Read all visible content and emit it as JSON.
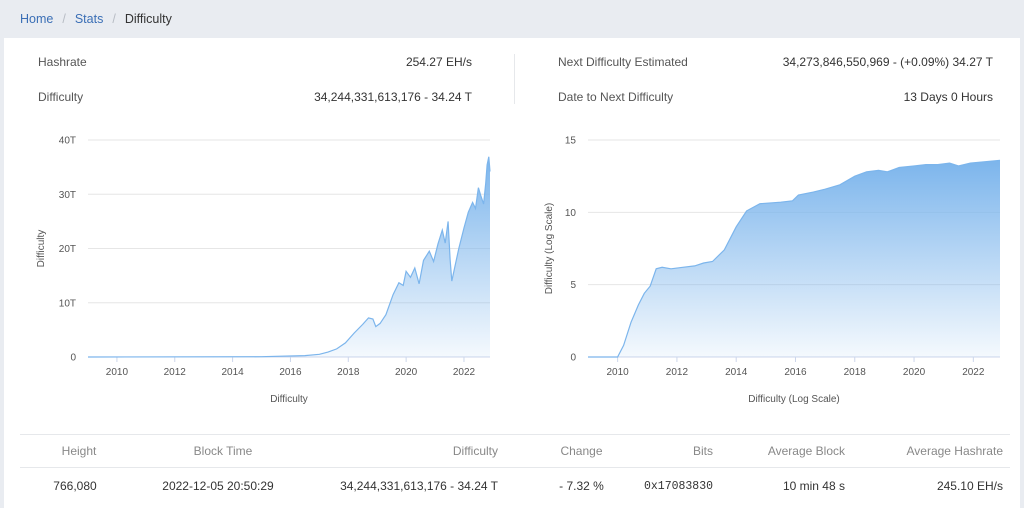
{
  "breadcrumb": {
    "home": "Home",
    "stats": "Stats",
    "current": "Difficulty"
  },
  "stats": {
    "hashrate_label": "Hashrate",
    "hashrate_value": "254.27 EH/s",
    "difficulty_label": "Difficulty",
    "difficulty_value": "34,244,331,613,176 - 34.24 T",
    "next_label": "Next Difficulty Estimated",
    "next_value": "34,273,846,550,969 - (+0.09%) 34.27 T",
    "date_label": "Date to Next Difficulty",
    "date_value": "13 Days 0 Hours"
  },
  "chart_data": [
    {
      "type": "area",
      "title": "",
      "xlabel": "Difficulty",
      "ylabel": "Difficulty",
      "x_ticks": [
        "2010",
        "2012",
        "2014",
        "2016",
        "2018",
        "2020",
        "2022"
      ],
      "y_ticks": [
        "0",
        "10T",
        "20T",
        "30T",
        "40T"
      ],
      "xlim": [
        2009.0,
        2022.9
      ],
      "ylim": [
        0,
        40
      ],
      "y_unit": "T",
      "grid": true,
      "color": "#7cb5ec",
      "points": [
        [
          2009.0,
          0
        ],
        [
          2015.0,
          0.05
        ],
        [
          2016.5,
          0.25
        ],
        [
          2017.0,
          0.5
        ],
        [
          2017.3,
          0.9
        ],
        [
          2017.6,
          1.5
        ],
        [
          2017.9,
          2.6
        ],
        [
          2018.2,
          4.4
        ],
        [
          2018.5,
          6.0
        ],
        [
          2018.7,
          7.2
        ],
        [
          2018.85,
          7.0
        ],
        [
          2018.95,
          5.6
        ],
        [
          2019.1,
          6.2
        ],
        [
          2019.3,
          7.8
        ],
        [
          2019.55,
          11.5
        ],
        [
          2019.75,
          13.7
        ],
        [
          2019.9,
          13.2
        ],
        [
          2020.0,
          15.8
        ],
        [
          2020.15,
          14.7
        ],
        [
          2020.3,
          16.4
        ],
        [
          2020.45,
          13.5
        ],
        [
          2020.6,
          17.8
        ],
        [
          2020.8,
          19.5
        ],
        [
          2020.95,
          17.6
        ],
        [
          2021.1,
          20.8
        ],
        [
          2021.25,
          23.4
        ],
        [
          2021.35,
          21.0
        ],
        [
          2021.45,
          25.0
        ],
        [
          2021.52,
          18.0
        ],
        [
          2021.58,
          14.0
        ],
        [
          2021.68,
          16.5
        ],
        [
          2021.82,
          20.0
        ],
        [
          2022.0,
          23.8
        ],
        [
          2022.15,
          26.7
        ],
        [
          2022.3,
          28.5
        ],
        [
          2022.4,
          27.4
        ],
        [
          2022.5,
          31.2
        ],
        [
          2022.58,
          29.8
        ],
        [
          2022.68,
          28.2
        ],
        [
          2022.75,
          32.0
        ],
        [
          2022.8,
          35.4
        ],
        [
          2022.86,
          36.9
        ],
        [
          2022.9,
          34.2
        ]
      ]
    },
    {
      "type": "area",
      "title": "",
      "xlabel": "Difficulty (Log Scale)",
      "ylabel": "Difficulty (Log Scale)",
      "x_ticks": [
        "2010",
        "2012",
        "2014",
        "2016",
        "2018",
        "2020",
        "2022"
      ],
      "y_ticks": [
        "0",
        "5",
        "10",
        "15"
      ],
      "xlim": [
        2009.0,
        2022.9
      ],
      "ylim": [
        0,
        15
      ],
      "log_scale": true,
      "grid": true,
      "color": "#7cb5ec",
      "points": [
        [
          2009.0,
          0
        ],
        [
          2010.0,
          0
        ],
        [
          2010.2,
          0.8
        ],
        [
          2010.45,
          2.4
        ],
        [
          2010.7,
          3.6
        ],
        [
          2010.9,
          4.4
        ],
        [
          2011.1,
          4.9
        ],
        [
          2011.3,
          6.1
        ],
        [
          2011.5,
          6.2
        ],
        [
          2011.8,
          6.1
        ],
        [
          2012.2,
          6.2
        ],
        [
          2012.6,
          6.3
        ],
        [
          2012.9,
          6.5
        ],
        [
          2013.2,
          6.6
        ],
        [
          2013.6,
          7.4
        ],
        [
          2014.0,
          9.0
        ],
        [
          2014.35,
          10.1
        ],
        [
          2014.8,
          10.6
        ],
        [
          2015.5,
          10.7
        ],
        [
          2015.9,
          10.8
        ],
        [
          2016.1,
          11.2
        ],
        [
          2016.6,
          11.4
        ],
        [
          2017.0,
          11.6
        ],
        [
          2017.5,
          11.9
        ],
        [
          2018.0,
          12.5
        ],
        [
          2018.4,
          12.8
        ],
        [
          2018.8,
          12.9
        ],
        [
          2019.1,
          12.8
        ],
        [
          2019.5,
          13.1
        ],
        [
          2020.0,
          13.2
        ],
        [
          2020.4,
          13.3
        ],
        [
          2020.8,
          13.3
        ],
        [
          2021.2,
          13.4
        ],
        [
          2021.5,
          13.2
        ],
        [
          2021.9,
          13.4
        ],
        [
          2022.4,
          13.5
        ],
        [
          2022.9,
          13.6
        ]
      ]
    }
  ],
  "table": {
    "headers": {
      "height": "Height",
      "block_time": "Block Time",
      "difficulty": "Difficulty",
      "change": "Change",
      "bits": "Bits",
      "avg_block": "Average Block",
      "avg_hashrate": "Average Hashrate"
    },
    "rows": [
      {
        "height": "766,080",
        "block_time": "2022-12-05 20:50:29",
        "difficulty": "34,244,331,613,176 - 34.24 T",
        "change": "- 7.32 %",
        "bits": "0x17083830",
        "avg_block": "10 min 48 s",
        "avg_hashrate": "245.10 EH/s"
      }
    ]
  }
}
